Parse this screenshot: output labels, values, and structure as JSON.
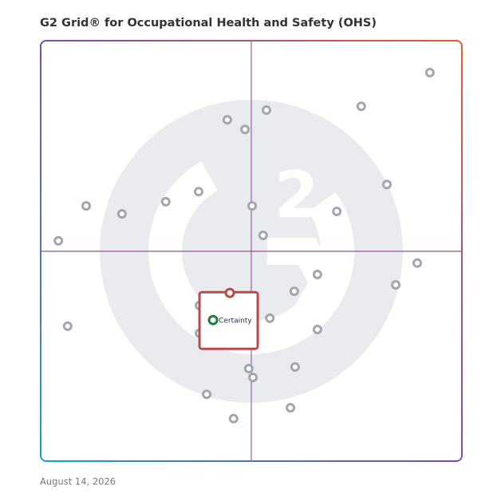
{
  "chart_data": {
    "type": "scatter",
    "title": "G2 Grid® for Occupational Health and Safety (OHS)",
    "date": "August 14, 2026",
    "xlim": [
      0,
      100
    ],
    "ylim": [
      0,
      100
    ],
    "color": "#a3a6ae",
    "x": [
      92.4,
      76.1,
      53.6,
      44.3,
      48.5,
      82.2,
      37.5,
      29.7,
      10.8,
      19.3,
      50.2,
      70.3,
      52.8,
      4.2,
      89.4,
      65.7,
      84.3,
      60.2,
      37.7,
      54.4,
      6.4,
      65.7,
      37.7,
      49.4,
      60.4,
      50.4,
      39.4,
      59.3,
      45.8
    ],
    "y": [
      92.4,
      84.4,
      83.5,
      81.2,
      78.9,
      65.8,
      64.1,
      61.7,
      60.7,
      58.8,
      60.7,
      59.4,
      53.7,
      52.4,
      47.1,
      44.4,
      41.9,
      40.4,
      37.0,
      34.0,
      32.1,
      31.3,
      30.4,
      22.0,
      22.4,
      19.9,
      15.9,
      12.7,
      10.1
    ],
    "highlight": {
      "label": "Certainty",
      "x": 44.9,
      "y": 40.0,
      "color": "#b84a4a"
    }
  }
}
